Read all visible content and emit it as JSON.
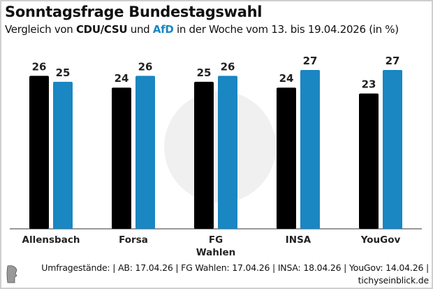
{
  "chart_data": {
    "type": "bar",
    "title": "Sonntagsfrage Bundestagswahl",
    "subtitle": {
      "prefix": "Vergleich von ",
      "party1": "CDU/CSU",
      "mid": " und ",
      "party2": "AfD",
      "suffix": " in der Woche vom 13. bis 19.04.2026 (in %)"
    },
    "categories": [
      "Allensbach",
      "Forsa",
      "FG Wahlen",
      "INSA",
      "YouGov"
    ],
    "series": [
      {
        "name": "CDU/CSU",
        "color": "#000000",
        "values": [
          26,
          24,
          25,
          24,
          23
        ]
      },
      {
        "name": "AfD",
        "color": "#1a86c2",
        "values": [
          25,
          26,
          26,
          27,
          27
        ]
      }
    ],
    "ylim": [
      0,
      27
    ],
    "grid": false,
    "xlabel": "",
    "ylabel": ""
  },
  "footer": {
    "sources": "Umfragestände: | AB: 17.04.26 | FG Wahlen: 17.04.26 | INSA: 18.04.26 | YouGov: 14.04.26 |",
    "site": "tichyseinblick.de"
  }
}
